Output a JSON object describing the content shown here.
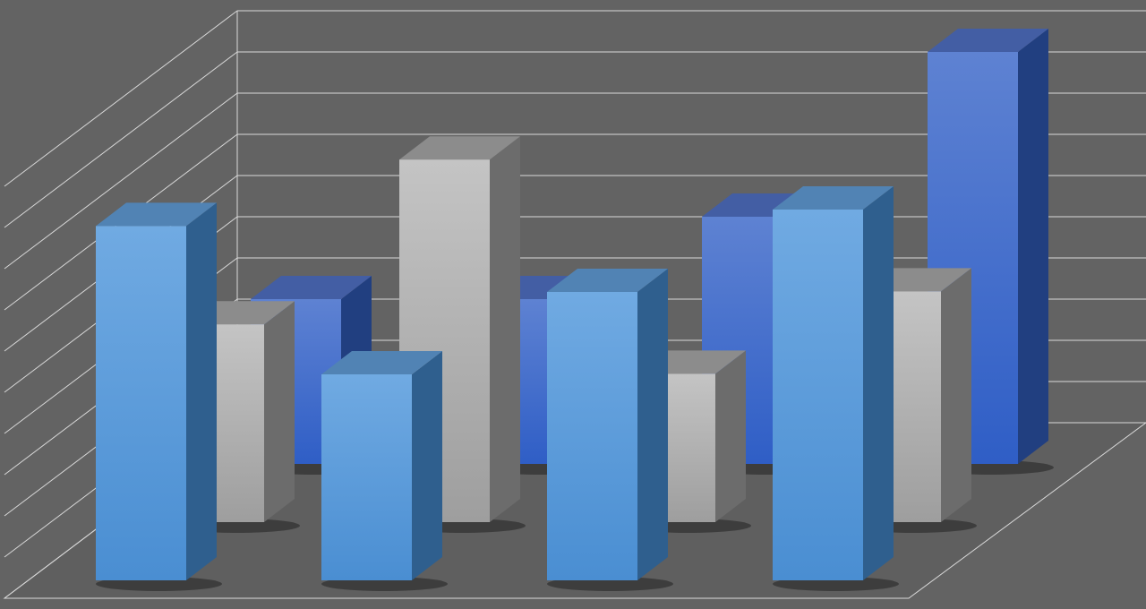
{
  "chart_data": {
    "type": "bar",
    "style": "3d-clustered-depth",
    "title": "",
    "xlabel": "",
    "ylabel": "",
    "categories": [
      "",
      "",
      "",
      ""
    ],
    "ylim": [
      0,
      11
    ],
    "grid": true,
    "legend": "none",
    "series": [
      {
        "values": [
          8.6,
          5,
          7,
          9
        ],
        "color": "#5a9ee0",
        "row": "front"
      },
      {
        "values": [
          4.8,
          8.8,
          3.6,
          5.6
        ],
        "color": "#b4b4b4",
        "row": "middle"
      },
      {
        "values": [
          4,
          4,
          6,
          10
        ],
        "color": "#3f68cc",
        "row": "back"
      }
    ],
    "background_color": "#636363",
    "grid_color": "#d8d8d8"
  }
}
